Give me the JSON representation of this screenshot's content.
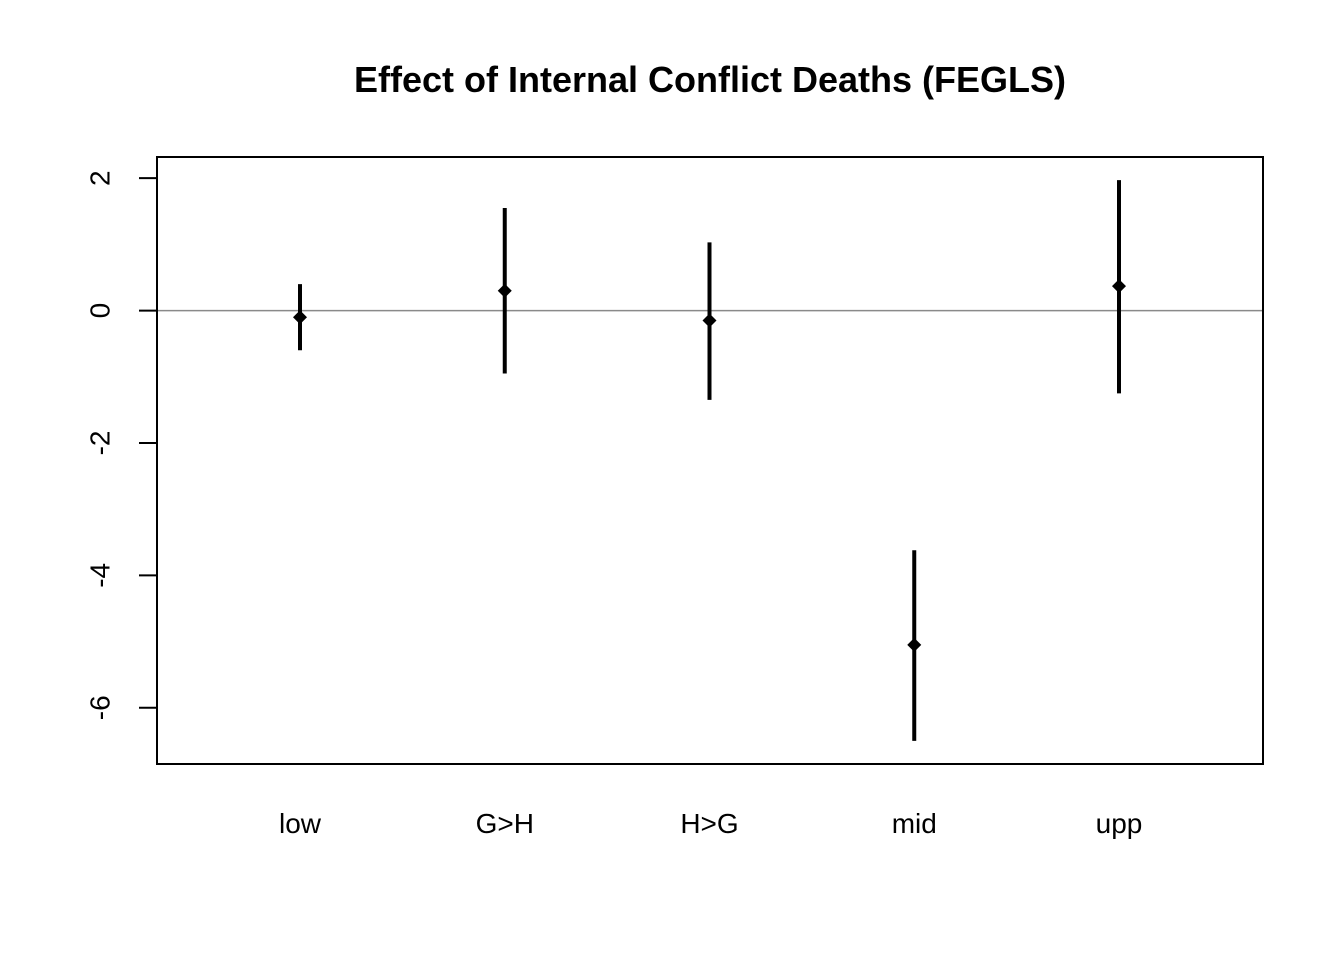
{
  "chart_data": {
    "type": "scatter",
    "title": "Effect of Internal Conflict Deaths (FEGLS)",
    "xlabel": "",
    "ylabel": "",
    "categories": [
      "low",
      "G>H",
      "H>G",
      "mid",
      "upp"
    ],
    "points": [
      {
        "category": "low",
        "estimate": -0.1,
        "lower": -0.6,
        "upper": 0.4
      },
      {
        "category": "G>H",
        "estimate": 0.3,
        "lower": -0.95,
        "upper": 1.55
      },
      {
        "category": "H>G",
        "estimate": -0.15,
        "lower": -1.35,
        "upper": 1.03
      },
      {
        "category": "mid",
        "estimate": -5.05,
        "lower": -6.5,
        "upper": -3.62
      },
      {
        "category": "upp",
        "estimate": 0.37,
        "lower": -1.25,
        "upper": 1.97
      }
    ],
    "yticks": [
      2,
      0,
      -2,
      -4,
      -6
    ],
    "ylim": [
      -6.85,
      2.32
    ],
    "reference_line": 0,
    "grid": false,
    "legend": "none"
  }
}
